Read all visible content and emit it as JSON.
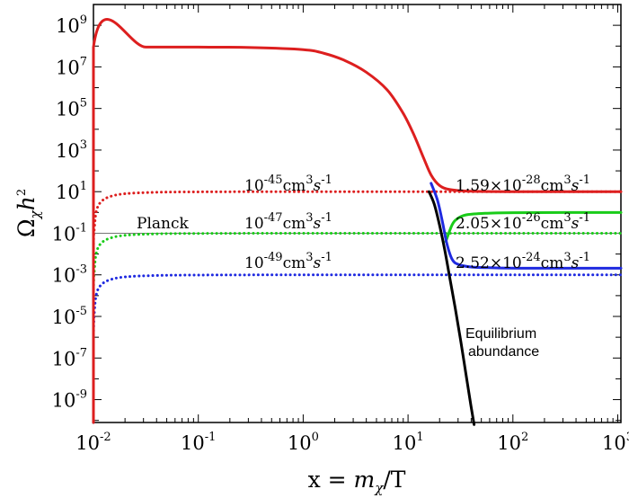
{
  "chart_data": {
    "type": "line",
    "xscale": "log",
    "yscale": "log",
    "xlim_log10": [
      -2,
      3.03
    ],
    "ylim_log10": [
      -10.1,
      10
    ],
    "xlabel": {
      "prefix": "x = ",
      "var": "m",
      "sub": "χ",
      "suffix": "/T"
    },
    "ylabel": {
      "var": "Ω",
      "sub": "χ",
      "mid": "h",
      "sup": "2"
    },
    "x_ticks": [
      {
        "exp": -2,
        "base": "10",
        "label": "-2"
      },
      {
        "exp": -1,
        "base": "10",
        "label": "-1"
      },
      {
        "exp": 0,
        "base": "10",
        "label": "0"
      },
      {
        "exp": 1,
        "base": "10",
        "label": "1"
      },
      {
        "exp": 2,
        "base": "10",
        "label": "2"
      },
      {
        "exp": 3,
        "base": "10",
        "label": "3"
      }
    ],
    "y_ticks": [
      {
        "exp": 9,
        "base": "10",
        "label": "9"
      },
      {
        "exp": 7,
        "base": "10",
        "label": "7"
      },
      {
        "exp": 5,
        "base": "10",
        "label": "5"
      },
      {
        "exp": 3,
        "base": "10",
        "label": "3"
      },
      {
        "exp": 1,
        "base": "10",
        "label": "1"
      },
      {
        "exp": -1,
        "base": "10",
        "label": "-1"
      },
      {
        "exp": -3,
        "base": "10",
        "label": "-3"
      },
      {
        "exp": -5,
        "base": "10",
        "label": "-5"
      },
      {
        "exp": -7,
        "base": "10",
        "label": "-7"
      },
      {
        "exp": -9,
        "base": "10",
        "label": "-9"
      }
    ],
    "series": [
      {
        "name": "Equilibrium abundance",
        "color": "#000000",
        "style": "solid",
        "points": [
          [
            1.2,
            1.0
          ],
          [
            1.25,
            0.4
          ],
          [
            1.3,
            -0.6
          ],
          [
            1.35,
            -1.8
          ],
          [
            1.4,
            -3.2
          ],
          [
            1.45,
            -4.6
          ],
          [
            1.5,
            -6.1
          ],
          [
            1.55,
            -7.7
          ],
          [
            1.6,
            -9.3
          ],
          [
            1.63,
            -10.2
          ]
        ]
      },
      {
        "name": "σv = 1.59×10^-28 cm^3 s^-1",
        "color": "#dd1f1f",
        "style": "solid",
        "points": [
          [
            -2,
            -10.1
          ],
          [
            -2,
            7.95
          ],
          [
            -1.5,
            7.95
          ],
          [
            -1,
            7.95
          ],
          [
            -0.5,
            7.93
          ],
          [
            0,
            7.83
          ],
          [
            0.2,
            7.65
          ],
          [
            0.4,
            7.3
          ],
          [
            0.6,
            6.75
          ],
          [
            0.8,
            5.9
          ],
          [
            0.95,
            4.8
          ],
          [
            1.05,
            3.8
          ],
          [
            1.15,
            2.6
          ],
          [
            1.22,
            1.8
          ],
          [
            1.3,
            1.3
          ],
          [
            1.4,
            1.1
          ],
          [
            1.6,
            1.02
          ],
          [
            2,
            1.0
          ],
          [
            3.03,
            1.0
          ]
        ]
      },
      {
        "name": "σv = 2.05×10^-26 cm^3 s^-1",
        "color": "#19cc19",
        "style": "solid",
        "points": [
          [
            1.36,
            -1.4
          ],
          [
            1.42,
            -0.6
          ],
          [
            1.47,
            -0.3
          ],
          [
            1.55,
            -0.12
          ],
          [
            1.7,
            -0.05
          ],
          [
            2,
            -0.01
          ],
          [
            3.03,
            0
          ]
        ]
      },
      {
        "name": "σv = 2.52×10^-24 cm^3 s^-1",
        "color": "#1f2ae0",
        "style": "solid",
        "points": [
          [
            1.22,
            1.4
          ],
          [
            1.28,
            0.6
          ],
          [
            1.33,
            -0.5
          ],
          [
            1.37,
            -1.5
          ],
          [
            1.42,
            -2.25
          ],
          [
            1.48,
            -2.5
          ],
          [
            1.6,
            -2.62
          ],
          [
            1.8,
            -2.66
          ],
          [
            2.1,
            -2.68
          ],
          [
            3.03,
            -2.68
          ]
        ]
      },
      {
        "name": "σv = 10^-45 cm^3 s^-1",
        "color": "#dd1f1f",
        "style": "dotted",
        "points": [
          [
            -2,
            -10.1
          ],
          [
            -2,
            -2.2
          ],
          [
            -1.99,
            -0.7
          ],
          [
            -1.97,
            0.1
          ],
          [
            -1.93,
            0.5
          ],
          [
            -1.85,
            0.75
          ],
          [
            -1.7,
            0.9
          ],
          [
            -1.4,
            0.97
          ],
          [
            -1,
            0.99
          ],
          [
            0,
            1.0
          ],
          [
            2,
            1.0
          ],
          [
            3.03,
            1.0
          ]
        ]
      },
      {
        "name": "σv = 10^-47 cm^3 s^-1",
        "color": "#19cc19",
        "style": "dotted",
        "points": [
          [
            -2,
            -10.1
          ],
          [
            -2,
            -4.2
          ],
          [
            -1.99,
            -2.7
          ],
          [
            -1.97,
            -1.9
          ],
          [
            -1.93,
            -1.5
          ],
          [
            -1.85,
            -1.25
          ],
          [
            -1.7,
            -1.1
          ],
          [
            -1.4,
            -1.03
          ],
          [
            -1,
            -1.01
          ],
          [
            0,
            -1.0
          ],
          [
            2,
            -1.0
          ],
          [
            3.03,
            -1.0
          ]
        ]
      },
      {
        "name": "σv = 10^-49 cm^3 s^-1",
        "color": "#1f2ae0",
        "style": "dotted",
        "points": [
          [
            -2,
            -10.1
          ],
          [
            -2,
            -6.2
          ],
          [
            -1.99,
            -4.7
          ],
          [
            -1.97,
            -3.9
          ],
          [
            -1.93,
            -3.5
          ],
          [
            -1.85,
            -3.25
          ],
          [
            -1.7,
            -3.1
          ],
          [
            -1.4,
            -3.03
          ],
          [
            -1,
            -3.01
          ],
          [
            0,
            -3.0
          ],
          [
            2,
            -3.0
          ],
          [
            3.03,
            -3.0
          ]
        ]
      }
    ],
    "reference_lines": [
      {
        "name": "Planck",
        "y_log10": -1,
        "color": "#777777"
      }
    ],
    "annotations": {
      "planck": "Planck",
      "equilibrium_line1": "Equilibrium",
      "equilibrium_line2": "abundance",
      "cross_section_unit": "cm",
      "cross_section_unit_sup": "3",
      "cross_section_s": "s",
      "cross_section_s_sup": "-1",
      "dotted_labels": [
        {
          "mantissa": "10",
          "exp": "-45"
        },
        {
          "mantissa": "10",
          "exp": "-47"
        },
        {
          "mantissa": "10",
          "exp": "-49"
        }
      ],
      "solid_labels": [
        {
          "mantissa": "1.59×10",
          "exp": "-28"
        },
        {
          "mantissa": "2.05×10",
          "exp": "-26"
        },
        {
          "mantissa": "2.52×10",
          "exp": "-24"
        }
      ]
    }
  }
}
